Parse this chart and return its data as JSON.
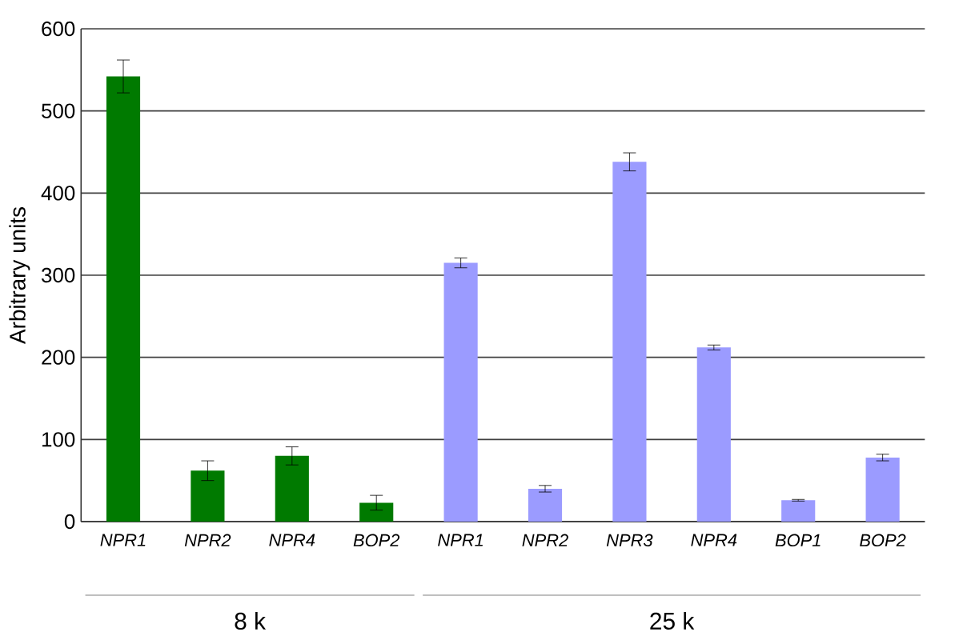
{
  "chart_data": {
    "type": "bar",
    "ylabel": "Arbitrary units",
    "categories": [
      "NPR1",
      "NPR2",
      "NPR4",
      "BOP2",
      "NPR1",
      "NPR2",
      "NPR3",
      "NPR4",
      "BOP1",
      "BOP2"
    ],
    "series": [
      {
        "color": "#007a00",
        "values": [
          542,
          62,
          80,
          23,
          null,
          null,
          null,
          null,
          null,
          null
        ],
        "errors": [
          20,
          12,
          11,
          9,
          null,
          null,
          null,
          null,
          null,
          null
        ]
      },
      {
        "color": "#9b9bff",
        "values": [
          null,
          null,
          null,
          null,
          315,
          40,
          438,
          212,
          26,
          78
        ],
        "errors": [
          null,
          null,
          null,
          null,
          6,
          4,
          11,
          3,
          1,
          4
        ]
      }
    ],
    "ylim": [
      0,
      600
    ],
    "yticks": [
      0,
      100,
      200,
      300,
      400,
      500,
      600
    ],
    "grid": "y",
    "annotations": [
      "8 k",
      "25 k"
    ]
  }
}
